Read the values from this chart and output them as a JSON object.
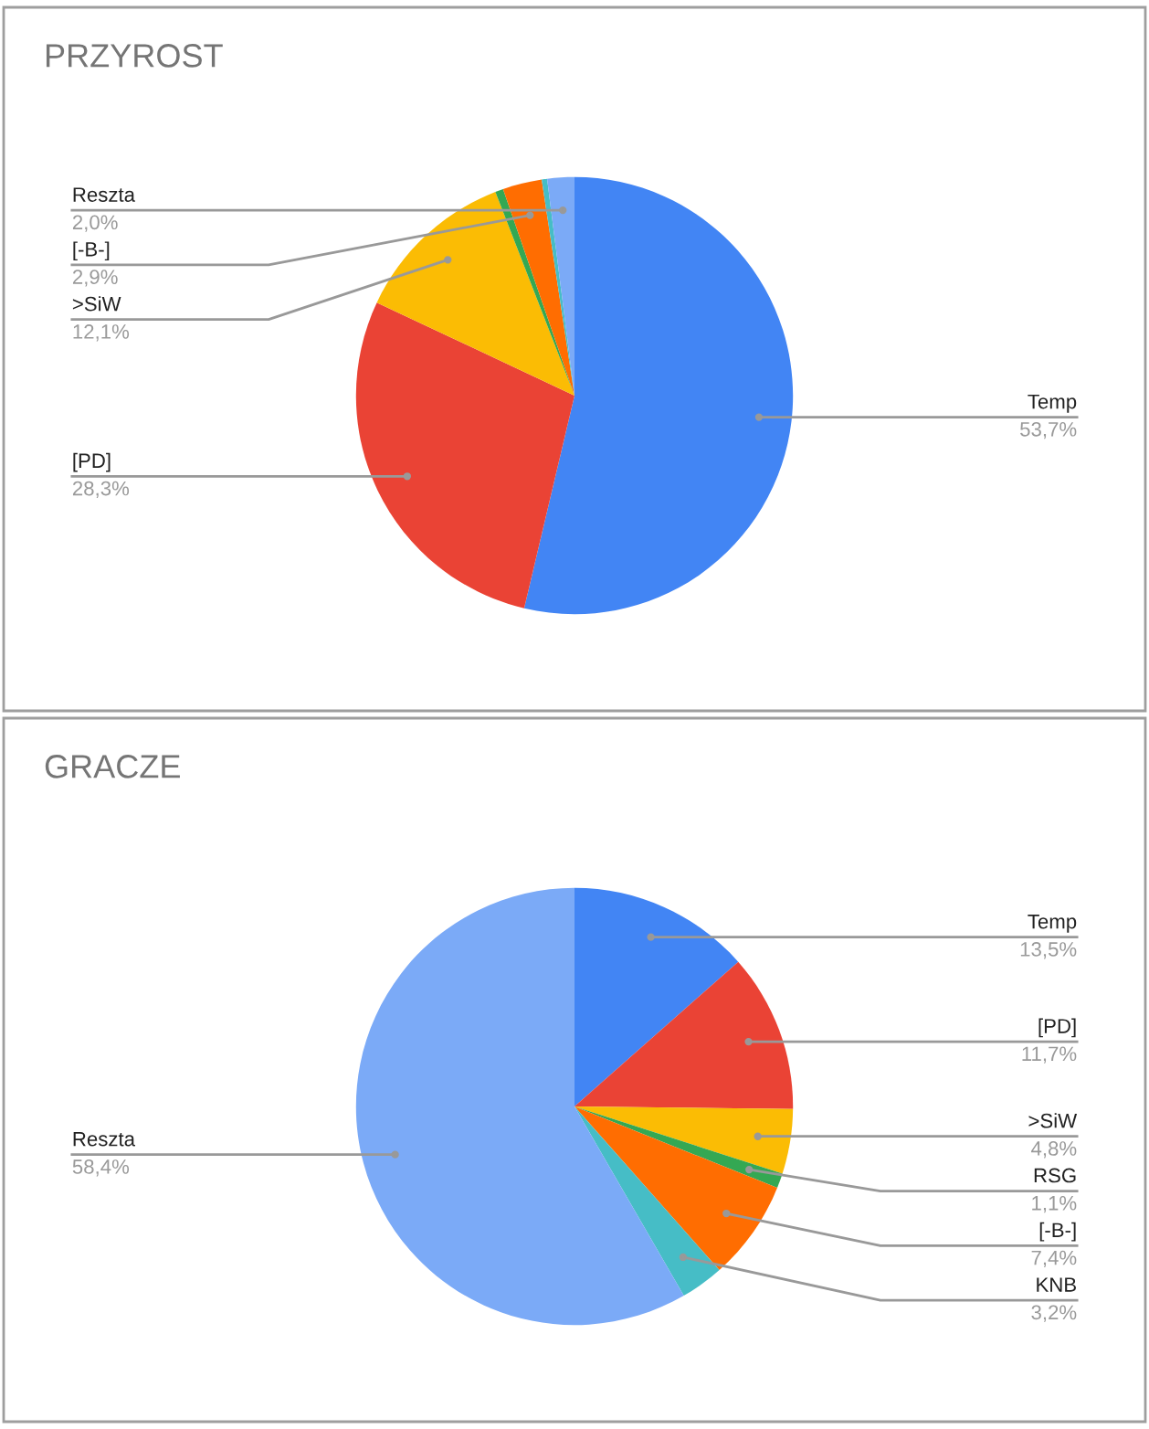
{
  "chart_data": [
    {
      "type": "pie",
      "title": "PRZYROST",
      "categories": [
        "Temp",
        "[PD]",
        ">SiW",
        null,
        "[-B-]",
        null,
        "Reszta"
      ],
      "values": [
        53.7,
        28.3,
        12.1,
        0.6,
        2.9,
        0.4,
        2.0
      ],
      "value_labels": [
        "53,7%",
        "28,3%",
        "12,1%",
        null,
        "2,9%",
        null,
        "2,0%"
      ],
      "colors": [
        "#4285f4",
        "#ea4335",
        "#fbbc04",
        "#34a853",
        "#ff6d01",
        "#46bdc6",
        "#7baaf7"
      ]
    },
    {
      "type": "pie",
      "title": "GRACZE",
      "categories": [
        "Temp",
        "[PD]",
        ">SiW",
        "RSG",
        "[-B-]",
        "KNB",
        "Reszta"
      ],
      "values": [
        13.5,
        11.7,
        4.8,
        1.1,
        7.4,
        3.2,
        58.4
      ],
      "value_labels": [
        "13,5%",
        "11,7%",
        "4,8%",
        "1,1%",
        "7,4%",
        "3,2%",
        "58,4%"
      ],
      "colors": [
        "#4285f4",
        "#ea4335",
        "#fbbc04",
        "#34a853",
        "#ff6d01",
        "#46bdc6",
        "#7baaf7"
      ]
    }
  ]
}
